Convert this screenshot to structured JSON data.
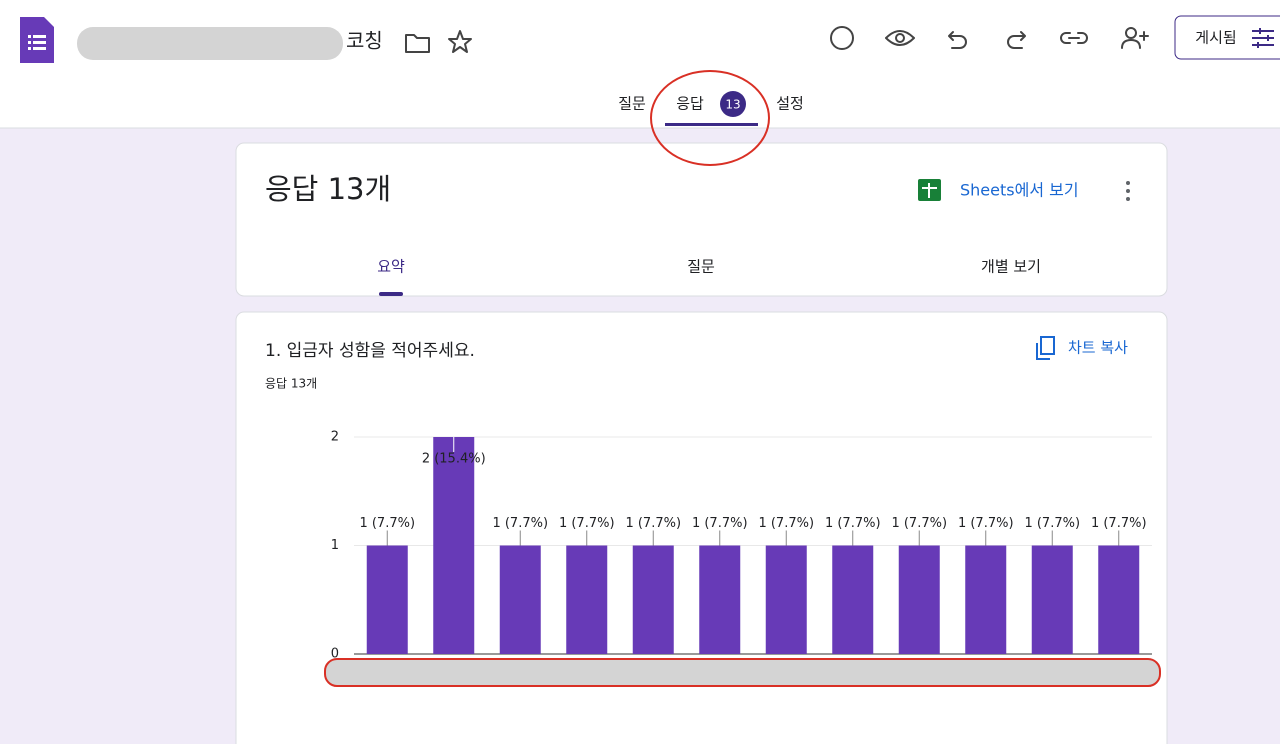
{
  "header": {
    "title": "코칭",
    "publish_button": "게시됨"
  },
  "tabs": [
    {
      "label": "질문"
    },
    {
      "label": "응답",
      "badge": "13"
    },
    {
      "label": "설정"
    }
  ],
  "summary": {
    "title": "응답 13개",
    "sheets_link": "Sheets에서 보기",
    "tabs": [
      "요약",
      "질문",
      "개별 보기"
    ]
  },
  "question": {
    "title": "1. 입금자 성함을 적어주세요.",
    "response_count": "응답 13개",
    "copy_chart": "차트 복사"
  },
  "chart_data": {
    "type": "bar",
    "categories": [
      null,
      null,
      null,
      null,
      null,
      null,
      null,
      null,
      null,
      null,
      null,
      null
    ],
    "values": [
      1,
      2,
      1,
      1,
      1,
      1,
      1,
      1,
      1,
      1,
      1,
      1
    ],
    "value_labels": [
      "1 (7.7%)",
      "2 (15.4%)",
      "1 (7.7%)",
      "1 (7.7%)",
      "1 (7.7%)",
      "1 (7.7%)",
      "1 (7.7%)",
      "1 (7.7%)",
      "1 (7.7%)",
      "1 (7.7%)",
      "1 (7.7%)",
      "1 (7.7%)"
    ],
    "ylim": [
      0,
      2
    ],
    "yticks": [
      0,
      1,
      2
    ],
    "color": "#673ab7",
    "grid": true
  }
}
